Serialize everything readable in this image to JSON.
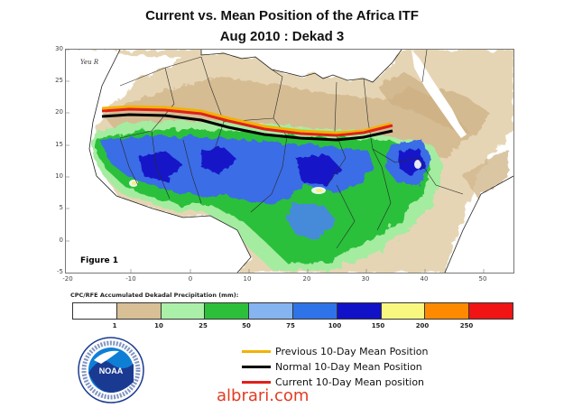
{
  "header": {
    "title_line1": "Current vs. Mean Position of the Africa ITF",
    "title_line2": "Aug 2010 : Dekad 3"
  },
  "map": {
    "figure_label": "Figure 1",
    "corner_label": "Yeu R",
    "x_ticks": [
      "-20",
      "-10",
      "0",
      "10",
      "20",
      "30",
      "40",
      "50"
    ],
    "y_ticks": [
      "30",
      "25",
      "20",
      "15",
      "10",
      "5",
      "0",
      "-5"
    ],
    "colors": {
      "ocean": "#ffffff",
      "dry_land": "#d8bf96",
      "light_green": "#9fe89f",
      "green": "#2cc03a",
      "blue": "#3b6de6",
      "dark_blue": "#1111c8",
      "border": "#2a2a2a"
    }
  },
  "colorbar": {
    "title": "CPC/RFE Accumulated Dekadal Precipitation (mm):",
    "labels": [
      "1",
      "10",
      "25",
      "50",
      "75",
      "100",
      "150",
      "200",
      "250"
    ],
    "colors": [
      "#ffffff",
      "#d8bf96",
      "#aaf0a8",
      "#2cc03a",
      "#85b4f0",
      "#2f73e8",
      "#1111c8",
      "#f8f880",
      "#ff8a00",
      "#f01414"
    ]
  },
  "legend": {
    "items": [
      {
        "label": "Previous 10-Day Mean Position",
        "color": "#f2b200"
      },
      {
        "label": "Normal 10-Day Mean Position",
        "color": "#000000"
      },
      {
        "label": "Current 10-Day Mean position",
        "color": "#e0201b"
      }
    ]
  },
  "logo": {
    "text": "NOAA",
    "icon": "noaa-logo"
  },
  "watermark": "albrari.com"
}
